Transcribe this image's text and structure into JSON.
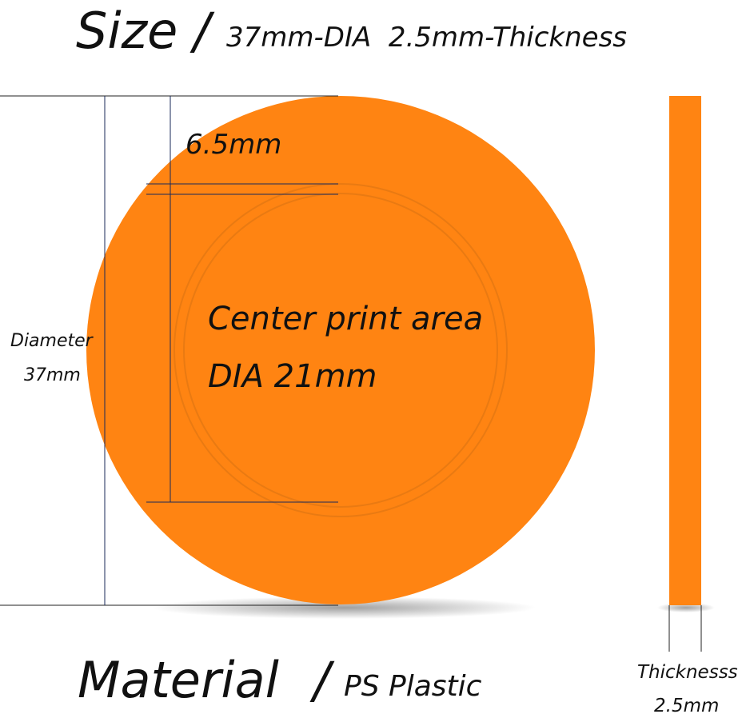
{
  "header": {
    "title": "Size",
    "separator": "/",
    "subtitle": "37mm-DIA  2.5mm-Thickness"
  },
  "disc": {
    "border_label": "6.5mm",
    "center_label_1": "Center print area",
    "center_label_2": "DIA 21mm",
    "diameter_label": "Diameter",
    "diameter_value": "37mm"
  },
  "side": {
    "label": "Thicknesss",
    "value": "2.5mm"
  },
  "footer": {
    "title": "Material",
    "separator": "/",
    "subtitle": "PS Plastic"
  }
}
